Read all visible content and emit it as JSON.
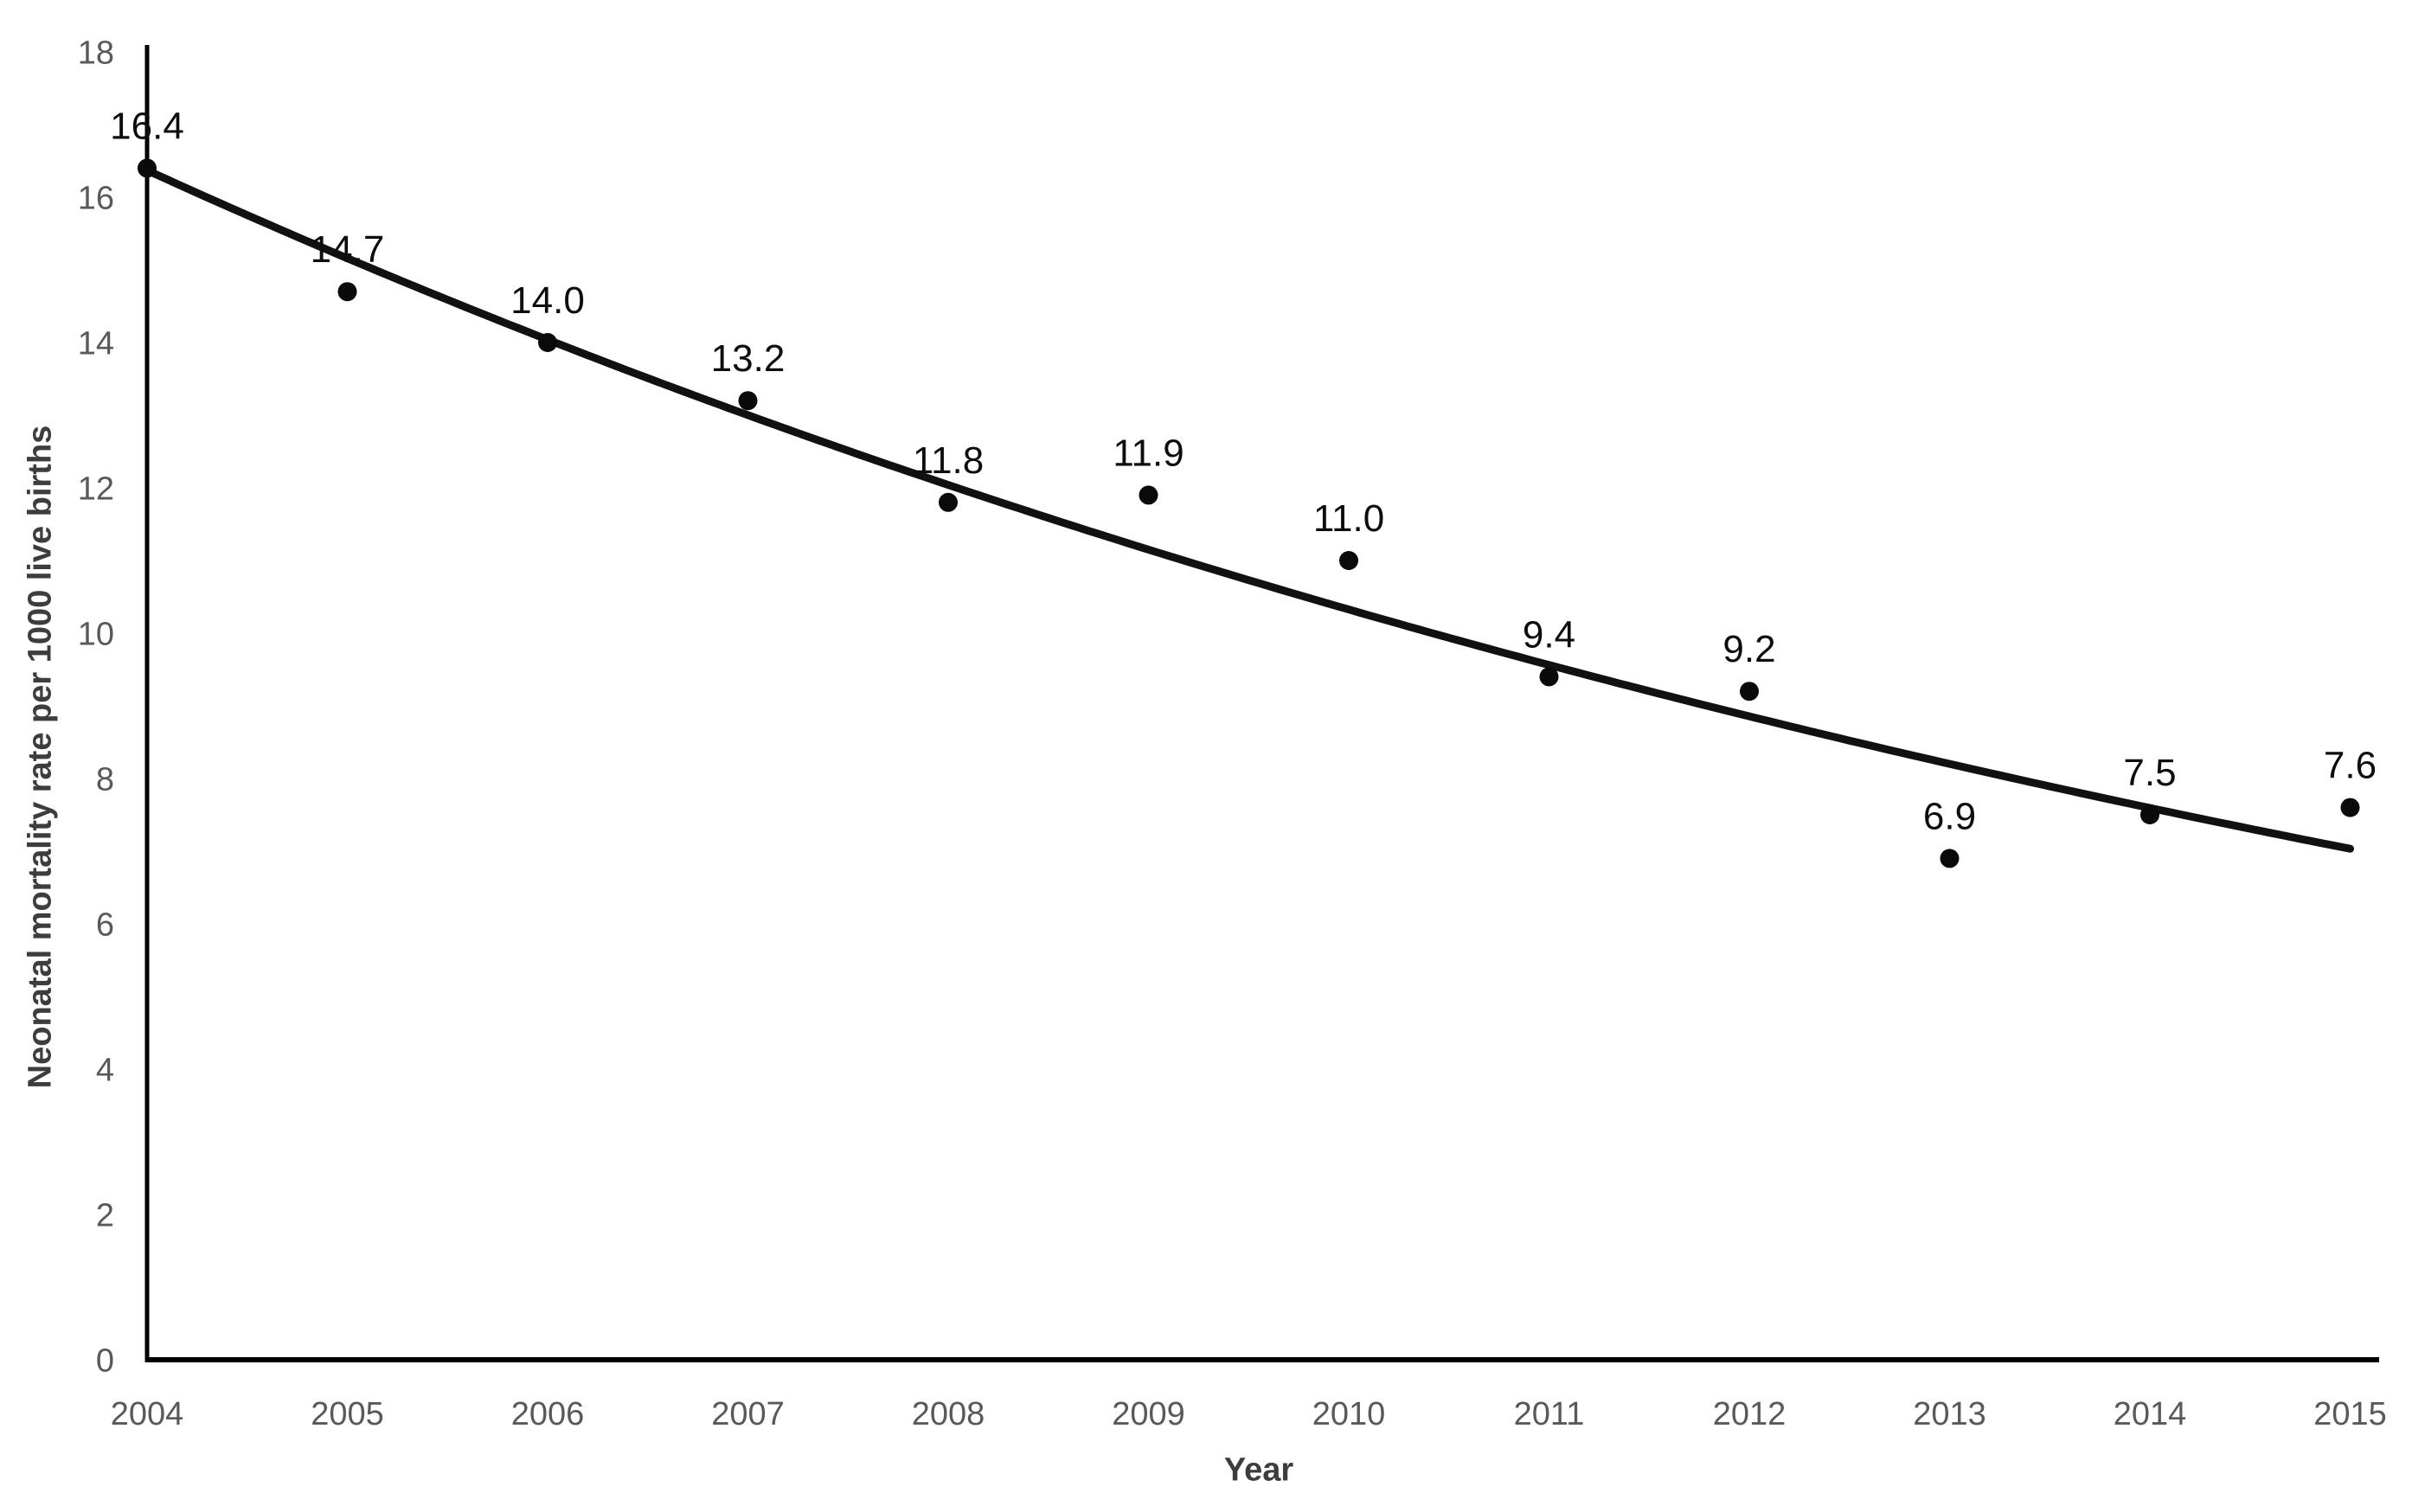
{
  "chart_data": {
    "type": "scatter",
    "title": "",
    "xlabel": "Year",
    "ylabel": "Neonatal mortality rate per 1000 live births",
    "categories": [
      "2004",
      "2005",
      "2006",
      "2007",
      "2008",
      "2009",
      "2010",
      "2011",
      "2012",
      "2013",
      "2014",
      "2015"
    ],
    "values": [
      16.4,
      14.7,
      14.0,
      13.2,
      11.8,
      11.9,
      11.0,
      9.4,
      9.2,
      6.9,
      7.5,
      7.6
    ],
    "point_labels": [
      "16.4",
      "14.7",
      "14.0",
      "13.2",
      "11.8",
      "11.9",
      "11.0",
      "9.4",
      "9.2",
      "6.9",
      "7.5",
      "7.6"
    ],
    "ylim": [
      0,
      18
    ],
    "yticks": [
      0,
      2,
      4,
      6,
      8,
      10,
      12,
      14,
      16,
      18
    ],
    "grid": false,
    "legend": "none",
    "trendline": {
      "type": "exponential",
      "a": 16.37,
      "b": -0.0768,
      "t_start": 0,
      "t_end": 11
    },
    "colors": {
      "point": "#0a0a0a",
      "trend_line": "#111111",
      "axis_line": "#000000",
      "tick_label": "#595959",
      "data_label": "#0d0d0d",
      "axis_title": "#3d3d3d",
      "background": "#ffffff"
    }
  }
}
